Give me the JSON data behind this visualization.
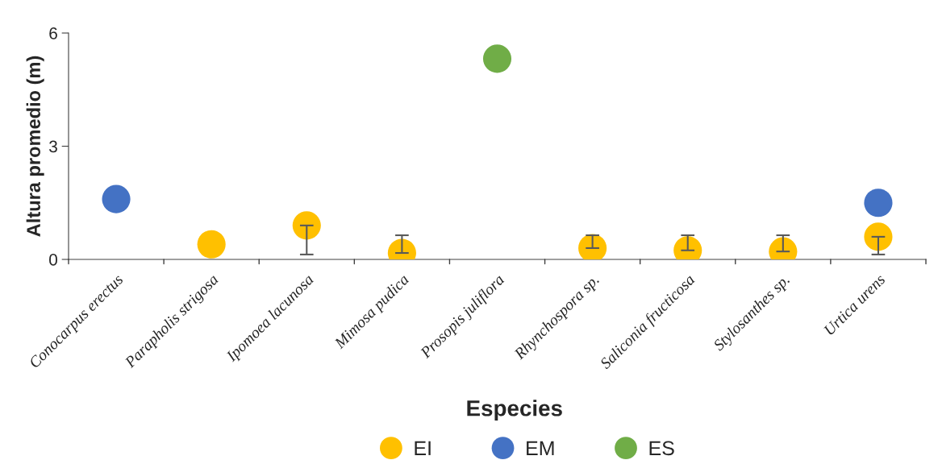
{
  "chart_data": {
    "type": "scatter",
    "xlabel": "Especies",
    "ylabel": "Altura promedio (m)",
    "categories": [
      "Conocarpus erectus",
      "Parapholis strigosa",
      "Ipomoea lacunosa",
      "Mimosa pudica",
      "Prosopis juliflora",
      "Rhynchospora sp.",
      "Saliconia fructicosa",
      "Stylosanthes sp.",
      "Urtica urens"
    ],
    "series": [
      {
        "name": "EI",
        "color": "#ffc000",
        "values": [
          null,
          0.4,
          0.9,
          0.17,
          null,
          0.3,
          0.24,
          0.21,
          0.6
        ],
        "errors": [
          null,
          null,
          [
            0.13,
            0.9
          ],
          [
            0.17,
            0.64
          ],
          null,
          [
            0.3,
            0.64
          ],
          [
            0.24,
            0.64
          ],
          [
            0.21,
            0.64
          ],
          [
            0.13,
            0.6
          ]
        ]
      },
      {
        "name": "EM",
        "color": "#4472c4",
        "values": [
          1.6,
          null,
          null,
          null,
          null,
          null,
          null,
          null,
          1.5
        ]
      },
      {
        "name": "ES",
        "color": "#70ad47",
        "values": [
          null,
          null,
          null,
          null,
          5.32,
          null,
          null,
          null,
          null
        ]
      }
    ],
    "ylim": [
      0,
      6
    ],
    "yticks": [
      0,
      3,
      6
    ],
    "grid": false,
    "legend": "bottom",
    "marker": "circle"
  }
}
